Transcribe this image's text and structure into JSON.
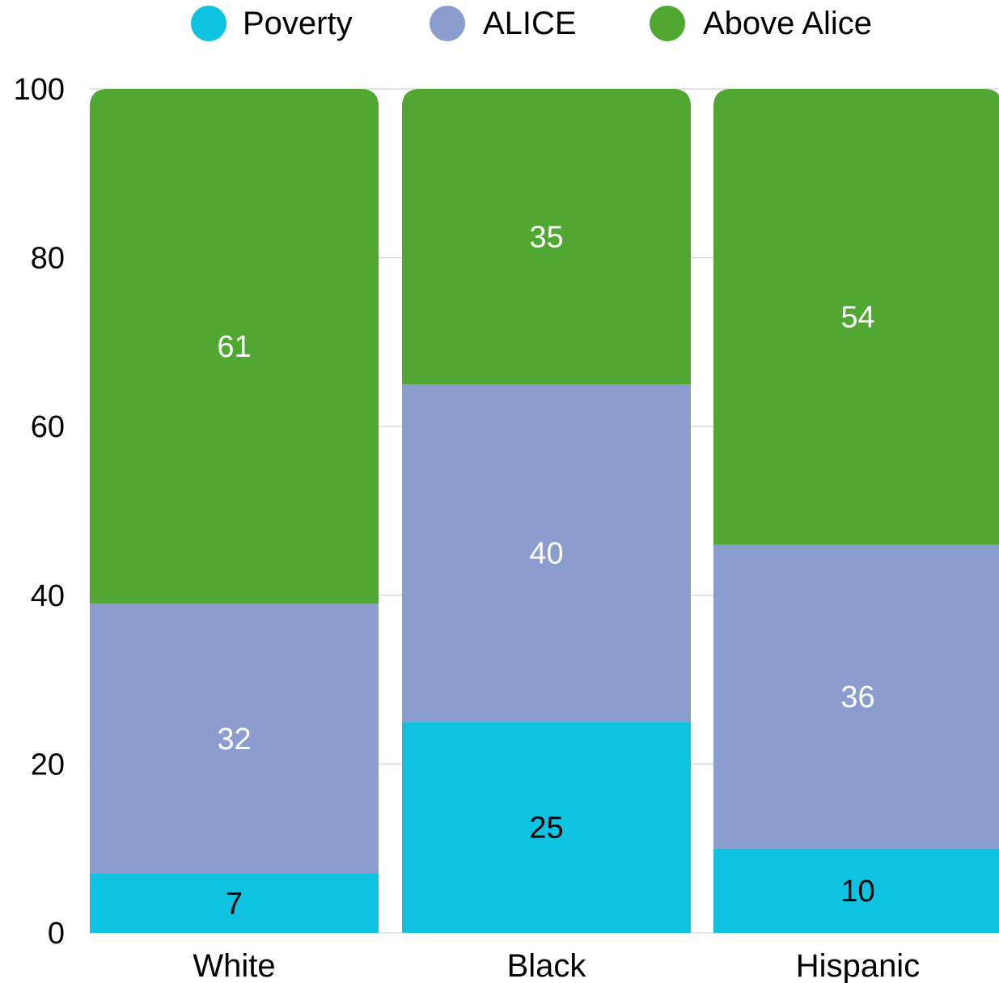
{
  "chart_data": {
    "type": "bar",
    "stacked": true,
    "categories": [
      "White",
      "Black",
      "Hispanic"
    ],
    "series": [
      {
        "name": "Poverty",
        "values": [
          7,
          25,
          10
        ],
        "color": "#0fc2e0",
        "label_color": "#000000"
      },
      {
        "name": "ALICE",
        "values": [
          32,
          40,
          36
        ],
        "color": "#8b9cce",
        "label_color": "#ffffff"
      },
      {
        "name": "Above Alice",
        "values": [
          61,
          35,
          54
        ],
        "color": "#50a832",
        "label_color": "#ffffff"
      }
    ],
    "yticks": [
      0,
      20,
      40,
      60,
      80,
      100
    ],
    "ylim": [
      0,
      100
    ],
    "grid": true,
    "legend_position": "top",
    "title": "",
    "xlabel": "",
    "ylabel": ""
  }
}
